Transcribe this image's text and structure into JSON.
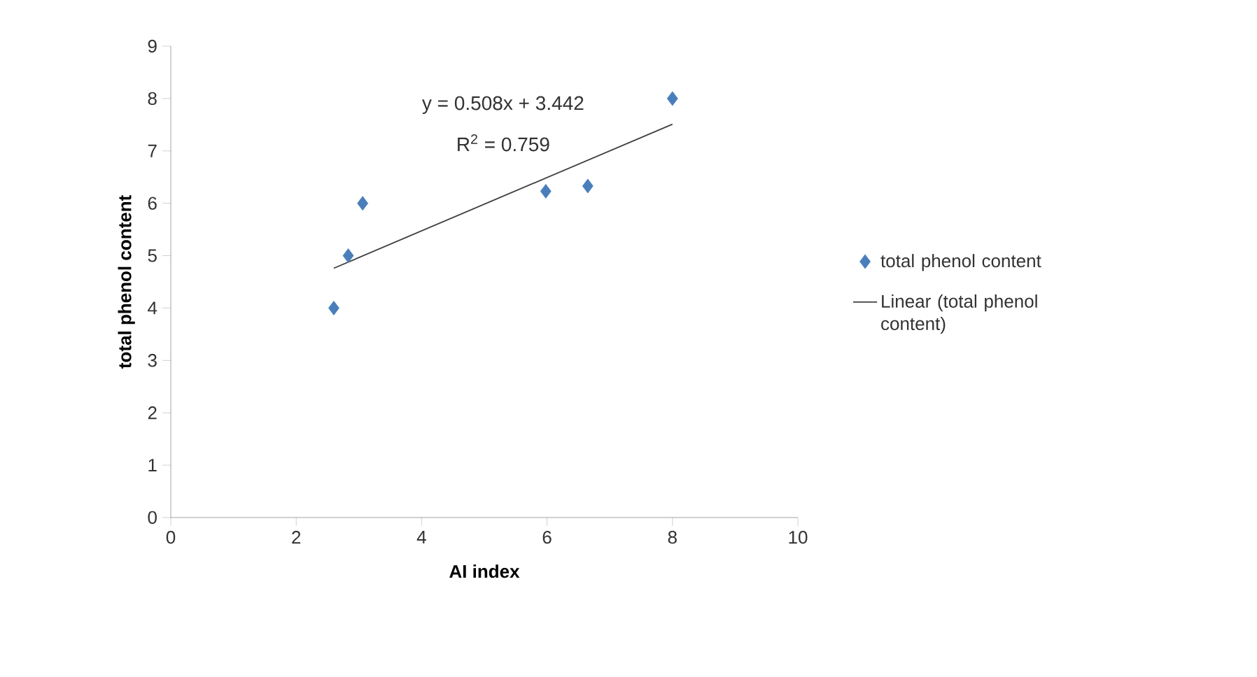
{
  "chart_data": {
    "type": "scatter",
    "xlabel": "AI index",
    "ylabel": "total phenol content",
    "x": [
      2.6,
      2.83,
      3.06,
      5.98,
      6.65,
      8.0
    ],
    "series": [
      {
        "name": "total phenol content",
        "color": "#4a7ebb",
        "values": [
          4.0,
          5.0,
          6.0,
          6.23,
          6.33,
          8.0
        ],
        "marker": "diamond"
      },
      {
        "name": "Linear (total phenol content)",
        "type": "line",
        "color": "#404040",
        "x": [
          2.6,
          8.0
        ],
        "values": [
          4.76,
          7.51
        ],
        "marker": "none"
      }
    ],
    "annotations": [
      "y = 0.508x + 3.442",
      "R$^{2}$ = 0.759"
    ],
    "xlim": [
      0,
      10
    ],
    "ylim": [
      0,
      9
    ],
    "xticks": [
      0,
      2,
      4,
      6,
      8,
      10
    ],
    "yticks": [
      0,
      1,
      2,
      3,
      4,
      5,
      6,
      7,
      8,
      9
    ],
    "grid": false,
    "legend": "right"
  }
}
